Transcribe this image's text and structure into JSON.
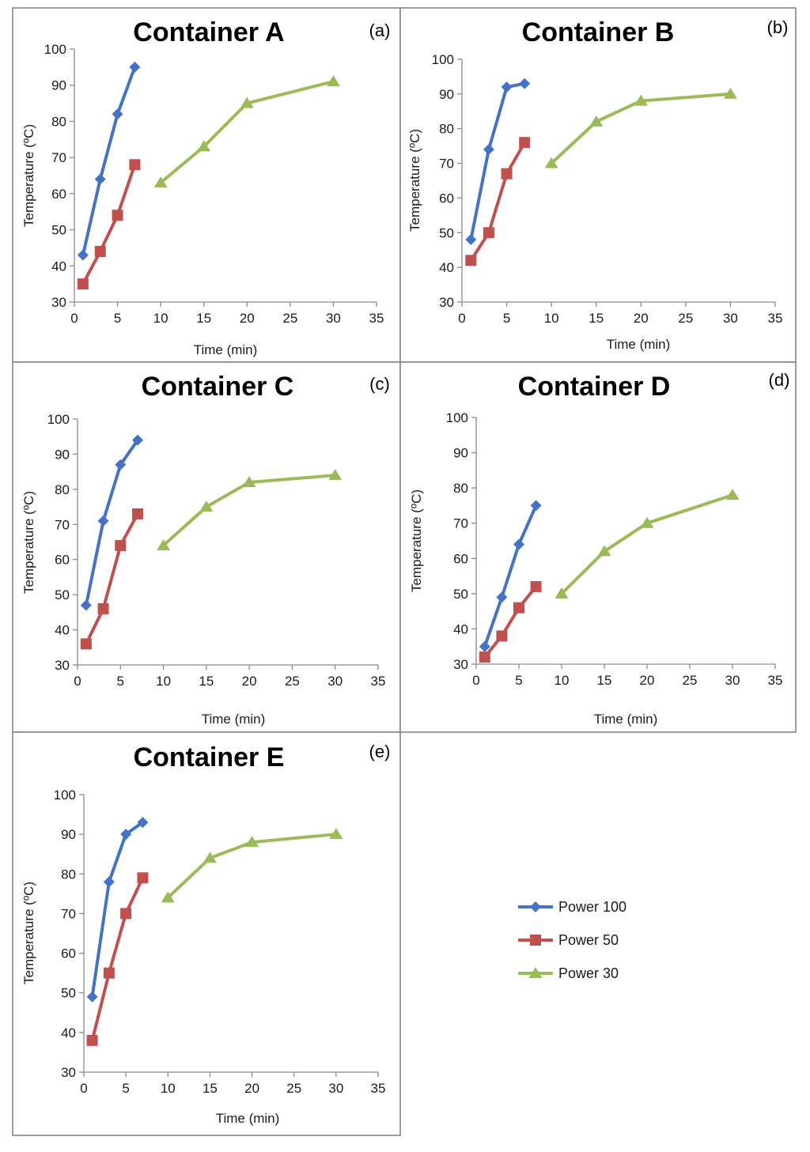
{
  "colors": {
    "power_100": "#4472c4",
    "power_50": "#c0504d",
    "power_30": "#9bbb59"
  },
  "legend": {
    "placement": "right",
    "items": [
      {
        "label": "Power 100",
        "marker": "diamond",
        "color": "#4472c4"
      },
      {
        "label": "Power 50",
        "marker": "square",
        "color": "#c0504d"
      },
      {
        "label": "Power 30",
        "marker": "triangle",
        "color": "#9bbb59"
      }
    ]
  },
  "chart_data": [
    {
      "type": "line",
      "title": "Container A",
      "panel_label": "(a)",
      "xlabel": "Time (min)",
      "ylabel": "Temperature (ºC)",
      "xlim": [
        0,
        35
      ],
      "ylim": [
        30,
        100
      ],
      "xticks": [
        0,
        5,
        10,
        15,
        20,
        25,
        30,
        35
      ],
      "yticks": [
        30,
        40,
        50,
        60,
        70,
        80,
        90,
        100
      ],
      "grid": false,
      "series": [
        {
          "name": "Power 100",
          "marker": "diamond",
          "color": "#4472c4",
          "x": [
            1,
            3,
            5,
            7
          ],
          "y": [
            43,
            64,
            82,
            95
          ]
        },
        {
          "name": "Power 50",
          "marker": "square",
          "color": "#c0504d",
          "x": [
            1,
            3,
            5,
            7
          ],
          "y": [
            35,
            44,
            54,
            68
          ]
        },
        {
          "name": "Power 30",
          "marker": "triangle",
          "color": "#9bbb59",
          "x": [
            10,
            15,
            20,
            30
          ],
          "y": [
            63,
            73,
            85,
            91
          ]
        }
      ]
    },
    {
      "type": "line",
      "title": "Container B",
      "panel_label": "(b)",
      "xlabel": "Time (min)",
      "ylabel": "Temperature (ºC)",
      "xlim": [
        0,
        35
      ],
      "ylim": [
        30,
        100
      ],
      "xticks": [
        0,
        5,
        10,
        15,
        20,
        25,
        30,
        35
      ],
      "yticks": [
        30,
        40,
        50,
        60,
        70,
        80,
        90,
        100
      ],
      "grid": false,
      "series": [
        {
          "name": "Power 100",
          "marker": "diamond",
          "color": "#4472c4",
          "x": [
            1,
            3,
            5,
            7
          ],
          "y": [
            48,
            74,
            92,
            93
          ]
        },
        {
          "name": "Power 50",
          "marker": "square",
          "color": "#c0504d",
          "x": [
            1,
            3,
            5,
            7
          ],
          "y": [
            42,
            50,
            67,
            76
          ]
        },
        {
          "name": "Power 30",
          "marker": "triangle",
          "color": "#9bbb59",
          "x": [
            10,
            15,
            20,
            30
          ],
          "y": [
            70,
            82,
            88,
            90
          ]
        }
      ]
    },
    {
      "type": "line",
      "title": "Container C",
      "panel_label": "(c)",
      "xlabel": "Time (min)",
      "ylabel": "Temperature (ºC)",
      "xlim": [
        0,
        35
      ],
      "ylim": [
        30,
        100
      ],
      "xticks": [
        0,
        5,
        10,
        15,
        20,
        25,
        30,
        35
      ],
      "yticks": [
        30,
        40,
        50,
        60,
        70,
        80,
        90,
        100
      ],
      "grid": false,
      "series": [
        {
          "name": "Power 100",
          "marker": "diamond",
          "color": "#4472c4",
          "x": [
            1,
            3,
            5,
            7
          ],
          "y": [
            47,
            71,
            87,
            94
          ]
        },
        {
          "name": "Power 50",
          "marker": "square",
          "color": "#c0504d",
          "x": [
            1,
            3,
            5,
            7
          ],
          "y": [
            36,
            46,
            64,
            73
          ]
        },
        {
          "name": "Power 30",
          "marker": "triangle",
          "color": "#9bbb59",
          "x": [
            10,
            15,
            20,
            30
          ],
          "y": [
            64,
            75,
            82,
            84
          ]
        }
      ]
    },
    {
      "type": "line",
      "title": "Container D",
      "panel_label": "(d)",
      "xlabel": "Time (min)",
      "ylabel": "Temperature (ºC)",
      "xlim": [
        0,
        35
      ],
      "ylim": [
        30,
        100
      ],
      "xticks": [
        0,
        5,
        10,
        15,
        20,
        25,
        30,
        35
      ],
      "yticks": [
        30,
        40,
        50,
        60,
        70,
        80,
        90,
        100
      ],
      "grid": false,
      "series": [
        {
          "name": "Power 100",
          "marker": "diamond",
          "color": "#4472c4",
          "x": [
            1,
            3,
            5,
            7
          ],
          "y": [
            35,
            49,
            64,
            75
          ]
        },
        {
          "name": "Power 50",
          "marker": "square",
          "color": "#c0504d",
          "x": [
            1,
            3,
            5,
            7
          ],
          "y": [
            32,
            38,
            46,
            52
          ]
        },
        {
          "name": "Power 30",
          "marker": "triangle",
          "color": "#9bbb59",
          "x": [
            10,
            15,
            20,
            30
          ],
          "y": [
            50,
            62,
            70,
            78
          ]
        }
      ]
    },
    {
      "type": "line",
      "title": "Container E",
      "panel_label": "(e)",
      "xlabel": "Time (min)",
      "ylabel": "Temperature (ºC)",
      "xlim": [
        0,
        35
      ],
      "ylim": [
        30,
        100
      ],
      "xticks": [
        0,
        5,
        10,
        15,
        20,
        25,
        30,
        35
      ],
      "yticks": [
        30,
        40,
        50,
        60,
        70,
        80,
        90,
        100
      ],
      "grid": false,
      "series": [
        {
          "name": "Power 100",
          "marker": "diamond",
          "color": "#4472c4",
          "x": [
            1,
            3,
            5,
            7
          ],
          "y": [
            49,
            78,
            90,
            93
          ]
        },
        {
          "name": "Power 50",
          "marker": "square",
          "color": "#c0504d",
          "x": [
            1,
            3,
            5,
            7
          ],
          "y": [
            38,
            55,
            70,
            79
          ]
        },
        {
          "name": "Power 30",
          "marker": "triangle",
          "color": "#9bbb59",
          "x": [
            10,
            15,
            20,
            30
          ],
          "y": [
            74,
            84,
            88,
            90
          ]
        }
      ]
    }
  ]
}
